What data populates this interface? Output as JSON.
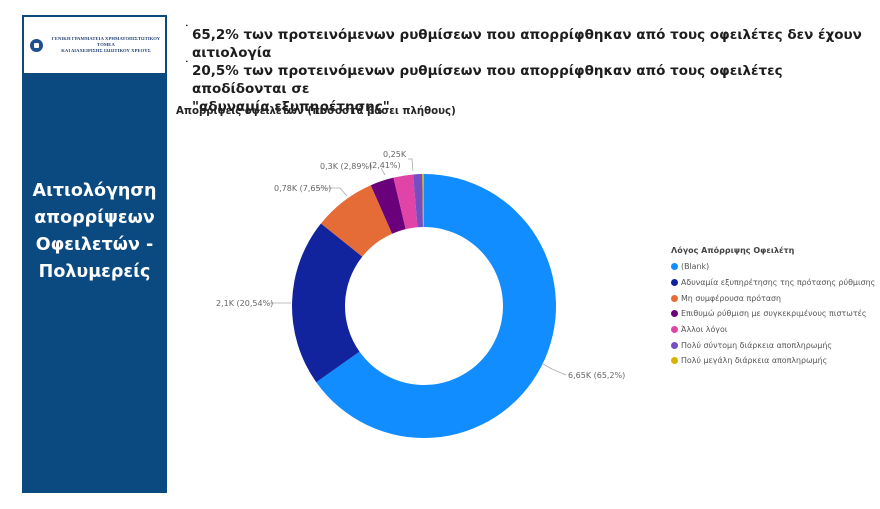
{
  "sidebar": {
    "logo_line1": "ΓΕΝΙΚΗ ΓΡΑΜΜΑΤΕΙΑ ΧΡΗΜΑΤΟΠΙΣΤΩΤΙΚΟΥ ΤΟΜΕΑ",
    "logo_line2": "ΚΑΙ ΔΙΑΧΕΙΡΙΣΗΣ ΙΔΙΩΤΙΚΟΥ ΧΡΕΟΥΣ",
    "title_lines": [
      "Αιτιολόγηση",
      "απορρίψεων",
      "Οφειλετών -",
      "Πολυμερείς"
    ],
    "background_color": "#0b4a80"
  },
  "bullets": [
    {
      "line1": "65,2% των προτεινόμενων ρυθμίσεων που απορρίφθηκαν από τους οφειλέτες δεν έχουν",
      "line2": "αιτιολογία"
    },
    {
      "line1": "20,5% των προτεινόμενων ρυθμίσεων που απορρίφθηκαν από τους οφειλέτες αποδίδονται σε",
      "line2": "\"αδυναμία εξυπηρέτησης\""
    }
  ],
  "chart_data": {
    "type": "pie",
    "variant": "donut",
    "title": "Απορρίψεις οφειλετών (ποσοστά βάσει πλήθους)",
    "legend_title": "Λόγος Απόρριψης Οφειλέτη",
    "legend_position": "right",
    "categories": [
      "(Blank)",
      "Αδυναμία εξυπηρέτησης της πρότασης ρύθμισης",
      "Μη συμφέρουσα πρόταση",
      "Επιθυμώ ρύθμιση με συγκεκριμένους πιστωτές",
      "Άλλοι λόγοι",
      "Πολύ σύντομη διάρκεια αποπληρωμής",
      "Πολύ μεγάλη διάρκεια αποπληρωμής"
    ],
    "values": [
      65.2,
      20.54,
      7.65,
      2.89,
      2.41,
      1.1,
      0.21
    ],
    "counts": [
      "6,65K",
      "2,1K",
      "0,78K",
      "0,3K",
      "0,25K",
      null,
      null
    ],
    "colors": [
      "#118dff",
      "#12239e",
      "#e66c37",
      "#6b007b",
      "#e044a7",
      "#744ec2",
      "#d9b300"
    ],
    "data_labels": [
      "6,65K (65,2%)",
      "2,1K (20,54%)",
      "0,78K (7,65%)",
      "0,3K (2,89%)",
      "0,25K (2,41%)",
      "",
      ""
    ],
    "units": "percent of count"
  },
  "labels": {
    "blank": "6,65K (65,2%)",
    "adynamia": "2,1K (20,54%)",
    "mi_symf": "0,78K (7,65%)",
    "epithymo": "0,3K (2,89%)",
    "alloi_count": "0,25K",
    "alloi_pct": "(2,41%)"
  }
}
